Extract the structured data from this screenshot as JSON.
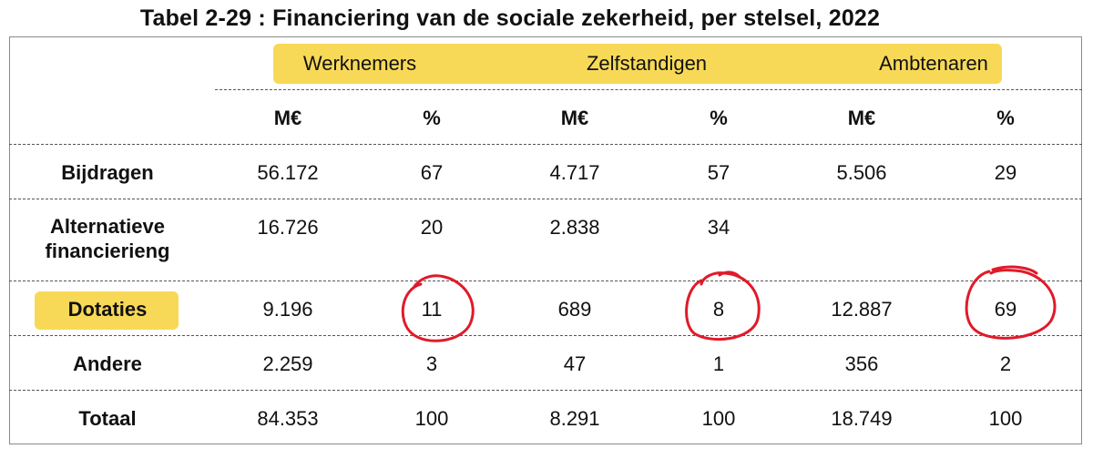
{
  "title": "Tabel 2-29 : Financiering van de sociale zekerheid, per stelsel, 2022",
  "colors": {
    "highlight": "#f7d23a",
    "circle": "#e01a2a",
    "border": "#8a8a8a"
  },
  "groups": [
    "Werknemers",
    "Zelfstandigen",
    "Ambtenaren"
  ],
  "subheaders": [
    "M€",
    "%",
    "M€",
    "%",
    "M€",
    "%"
  ],
  "rows": [
    {
      "label": "Bijdragen",
      "values": [
        "56.172",
        "67",
        "4.717",
        "57",
        "5.506",
        "29"
      ]
    },
    {
      "label": "Alternatieve financierieng",
      "values": [
        "16.726",
        "20",
        "2.838",
        "34",
        "",
        ""
      ]
    },
    {
      "label": "Dotaties",
      "values": [
        "9.196",
        "11",
        "689",
        "8",
        "12.887",
        "69"
      ]
    },
    {
      "label": "Andere",
      "values": [
        "2.259",
        "3",
        "47",
        "1",
        "356",
        "2"
      ]
    },
    {
      "label": "Totaal",
      "values": [
        "84.353",
        "100",
        "8.291",
        "100",
        "18.749",
        "100"
      ]
    }
  ]
}
